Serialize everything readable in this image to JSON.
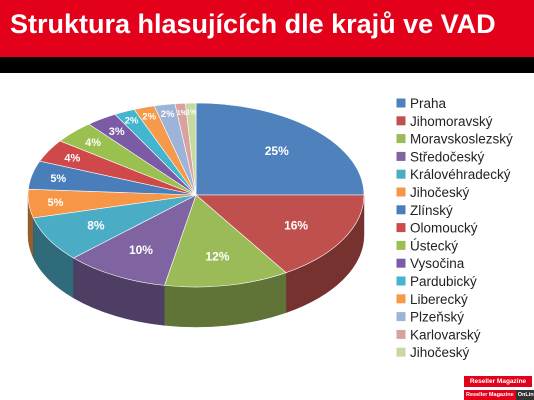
{
  "header": {
    "title": "Struktura hlasujících dle krajů ve VAD"
  },
  "logo": {
    "top": "Reseller Magazine",
    "bottom_left": "Reseller Magazine",
    "bottom_right": "OnLine"
  },
  "chart_data": {
    "type": "pie",
    "title": "Struktura hlasujících dle krajů ve VAD",
    "legend_position": "right",
    "categories": [
      "Praha",
      "Jihomoravský",
      "Moravskoslezský",
      "Středočeský",
      "Královéhradecký",
      "Jihočeský",
      "Zlínský",
      "Olomoucký",
      "Ústecký",
      "Vysočina",
      "Pardubický",
      "Liberecký",
      "Plzeňský",
      "Karlovarský",
      "Jihočeský"
    ],
    "values": [
      25,
      16,
      12,
      10,
      8,
      5,
      5,
      4,
      4,
      3,
      2,
      2,
      2,
      1,
      1
    ],
    "labels": [
      "25%",
      "16%",
      "12%",
      "10%",
      "8%",
      "5%",
      "5%",
      "4%",
      "4%",
      "3%",
      "2%",
      "2%",
      "2%",
      "1%",
      "1%"
    ],
    "colors": [
      "#4f81bd",
      "#c0504d",
      "#9bbb59",
      "#8064a2",
      "#4bacc6",
      "#f79646",
      "#4a7ebb",
      "#d0494a",
      "#9ac150",
      "#7b5aa6",
      "#42b6cf",
      "#f49a4a",
      "#9db4d8",
      "#d8a2a1",
      "#c6d9a0"
    ]
  }
}
